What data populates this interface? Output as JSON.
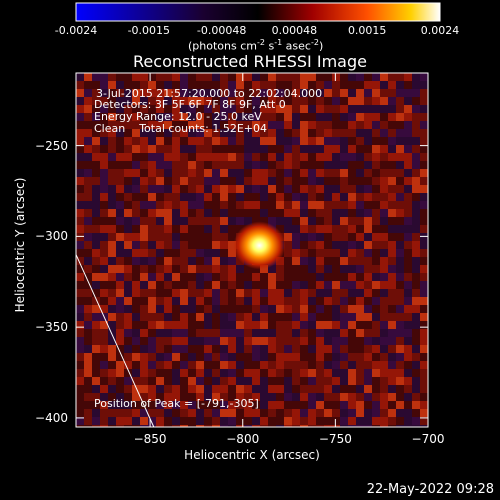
{
  "colorbar": {
    "ticks": [
      "-0.0024",
      "-0.0015",
      "-0.00048",
      "0.00048",
      "0.0015",
      "0.0024"
    ],
    "unit_prefix": "(photons cm",
    "unit_exp1": "-2",
    "unit_mid1": " s",
    "unit_exp2": "-1",
    "unit_mid2": " asec",
    "unit_exp3": "-2",
    "unit_suffix": ")",
    "colors": [
      "#0000ff",
      "#000000",
      "#ff0000",
      "#ffff00",
      "#ffffff"
    ]
  },
  "chart_data": {
    "type": "heatmap",
    "title": "Reconstructed RHESSI Image",
    "xlabel": "Heliocentric X (arcsec)",
    "ylabel": "Heliocentric Y (arcsec)",
    "xlim": [
      -890,
      -700
    ],
    "ylim": [
      -405,
      -210
    ],
    "x_ticks": [
      -850,
      -800,
      -750,
      -700
    ],
    "y_ticks": [
      -250,
      -300,
      -350,
      -400
    ],
    "x_tick_labels": [
      "-850",
      "-800",
      "-750",
      "-700"
    ],
    "y_tick_labels": [
      "-250",
      "-300",
      "-350",
      "-400"
    ],
    "peak": {
      "x": -791,
      "y": -305
    },
    "limb_line": {
      "x1": -890,
      "y1": -310,
      "x2": -848,
      "y2": -405
    }
  },
  "info": {
    "time_range": "3-Jul-2015 21:57:20.000 to 22:02:04.000",
    "detectors": "Detectors: 3F 5F 6F 7F 8F 9F, Att 0",
    "energy": "Energy Range: 12.0 - 25.0 keV",
    "clean": "Clean    Total counts: 1.52E+04",
    "peak_text": "Position of Peak = [-791,-305]"
  },
  "footer": {
    "date": "22-May-2022 09:28"
  }
}
